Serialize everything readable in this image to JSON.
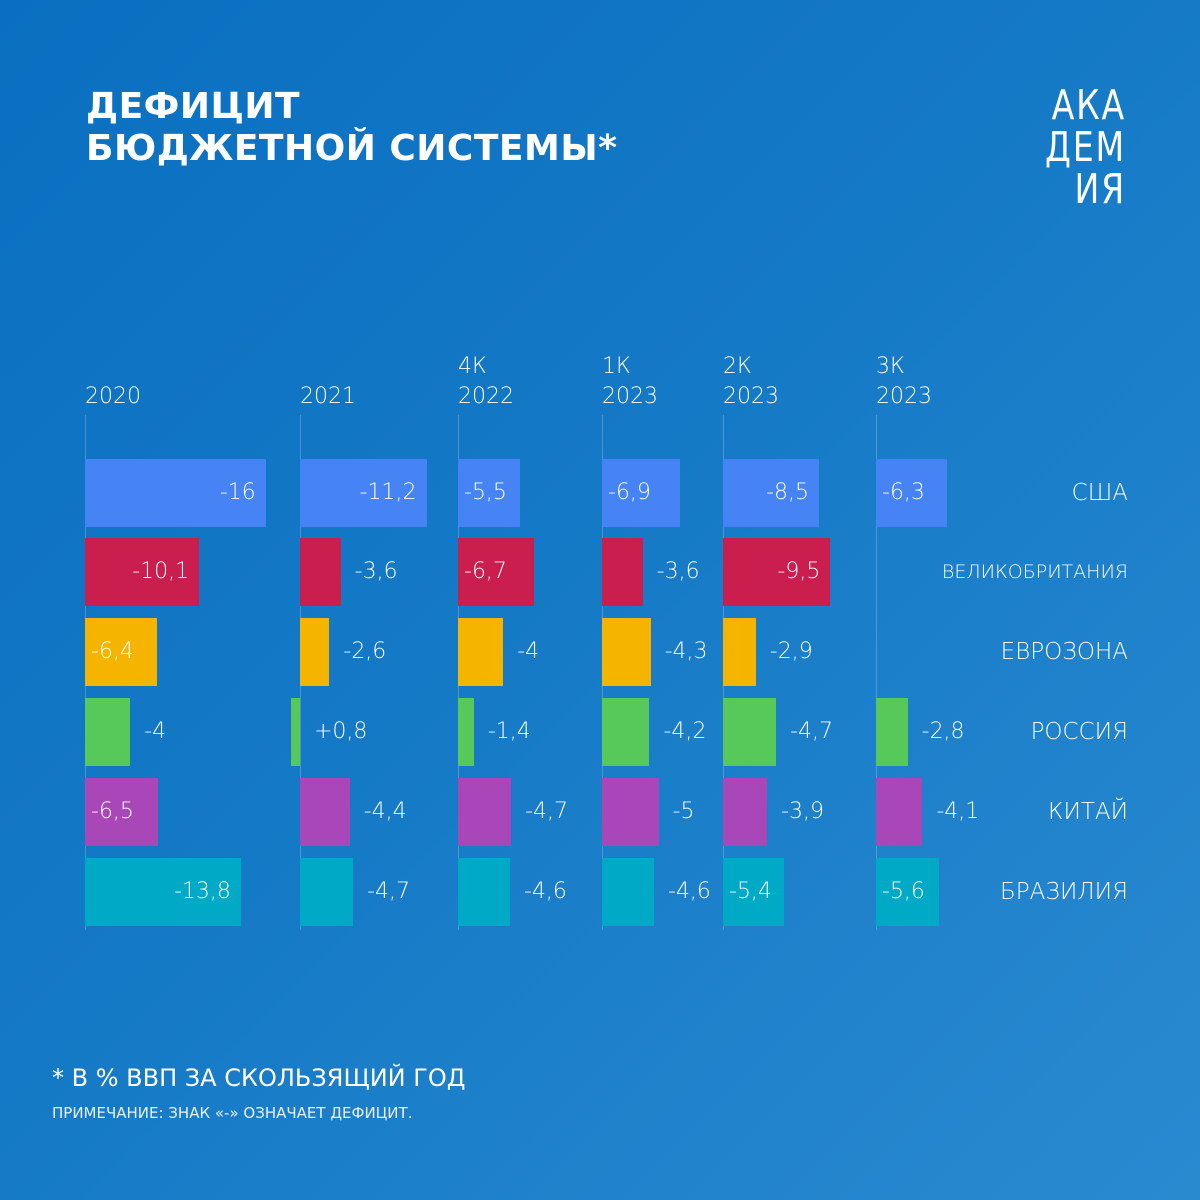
{
  "title": {
    "line1": "ДЕФИЦИТ",
    "line2": "БЮДЖЕТНОЙ СИСТЕМЫ*"
  },
  "logo": {
    "line1": "АКА",
    "line2": "ДЕМ",
    "line3": "ИЯ"
  },
  "columns": [
    {
      "line1": "",
      "line2": "2020"
    },
    {
      "line1": "",
      "line2": "2021"
    },
    {
      "line1": "4К",
      "line2": "2022"
    },
    {
      "line1": "1К",
      "line2": "2023"
    },
    {
      "line1": "2К",
      "line2": "2023"
    },
    {
      "line1": "3К",
      "line2": "2023"
    }
  ],
  "countries": [
    {
      "name": "США",
      "color": "#4684f5"
    },
    {
      "name": "ВЕЛИКОБРИТАНИЯ",
      "color": "#c91e4e"
    },
    {
      "name": "ЕВРОЗОНА",
      "color": "#f4b400"
    },
    {
      "name": "РОССИЯ",
      "color": "#57c95a"
    },
    {
      "name": "КИТАЙ",
      "color": "#a946b8"
    },
    {
      "name": "БРАЗИЛИЯ",
      "color": "#00aac6"
    }
  ],
  "labels": [
    [
      "-16",
      "-11,2",
      "-5,5",
      "-6,9",
      "-8,5",
      "-6,3"
    ],
    [
      "-10,1",
      "-3,6",
      "-6,7",
      "-3,6",
      "-9,5",
      ""
    ],
    [
      "-6,4",
      "-2,6",
      "-4",
      "-4,3",
      "-2,9",
      ""
    ],
    [
      "-4",
      "+0,8",
      "-1,4",
      "-4,2",
      "-4,7",
      "-2,8"
    ],
    [
      "-6,5",
      "-4,4",
      "-4,7",
      "-5",
      "-3,9",
      "-4,1"
    ],
    [
      "-13,8",
      "-4,7",
      "-4,6",
      "-4,6",
      "-5,4",
      "-5,6"
    ]
  ],
  "footnote": {
    "main": "* В % ВВП ЗА СКОЛЬЗЯЩИЙ ГОД",
    "note": "ПРИМЕЧАНИЕ: ЗНАК «-» ОЗНАЧАЕТ ДЕФИЦИТ."
  },
  "chart_data": {
    "type": "bar",
    "orientation": "horizontal",
    "title": "Дефицит бюджетной системы*",
    "subtitle": "* в % ВВП за скользящий год",
    "note": "Примечание: знак «-» означает дефицит.",
    "categories": [
      "2020",
      "2021",
      "4К 2022",
      "1К 2023",
      "2К 2023",
      "3К 2023"
    ],
    "series": [
      {
        "name": "США",
        "color": "#4684f5",
        "values": [
          -16,
          -11.2,
          -5.5,
          -6.9,
          -8.5,
          -6.3
        ]
      },
      {
        "name": "Великобритания",
        "color": "#c91e4e",
        "values": [
          -10.1,
          -3.6,
          -6.7,
          -3.6,
          -9.5,
          null
        ]
      },
      {
        "name": "Еврозона",
        "color": "#f4b400",
        "values": [
          -6.4,
          -2.6,
          -4,
          -4.3,
          -2.9,
          null
        ]
      },
      {
        "name": "Россия",
        "color": "#57c95a",
        "values": [
          -4,
          0.8,
          -1.4,
          -4.2,
          -4.7,
          -2.8
        ]
      },
      {
        "name": "Китай",
        "color": "#a946b8",
        "values": [
          -6.5,
          -4.4,
          -4.7,
          -5,
          -3.9,
          -4.1
        ]
      },
      {
        "name": "Бразилия",
        "color": "#00aac6",
        "values": [
          -13.8,
          -4.7,
          -4.6,
          -4.6,
          -5.4,
          -5.6
        ]
      }
    ],
    "xlabel": "",
    "ylabel": "% ВВП",
    "grid": false,
    "legend_position": "right (country labels per row)"
  }
}
